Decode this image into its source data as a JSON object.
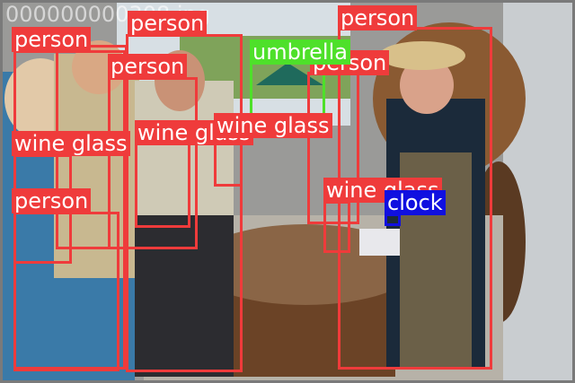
{
  "image": {
    "filename": "000000000308.jpg"
  },
  "detections": [
    {
      "label": "person",
      "color": "#ef3b3b"
    },
    {
      "label": "person",
      "color": "#ef3b3b"
    },
    {
      "label": "person",
      "color": "#ef3b3b"
    },
    {
      "label": "person",
      "color": "#ef3b3b"
    },
    {
      "label": "person",
      "color": "#ef3b3b"
    },
    {
      "label": "person",
      "color": "#ef3b3b"
    },
    {
      "label": "umbrella",
      "color": "#4ee02a"
    },
    {
      "label": "wine glass",
      "color": "#ef3b3b"
    },
    {
      "label": "wine glass",
      "color": "#ef3b3b"
    },
    {
      "label": "wine glass",
      "color": "#ef3b3b"
    },
    {
      "label": "wine glass",
      "color": "#ef3b3b"
    },
    {
      "label": "clock",
      "color": "#1010e0"
    }
  ]
}
